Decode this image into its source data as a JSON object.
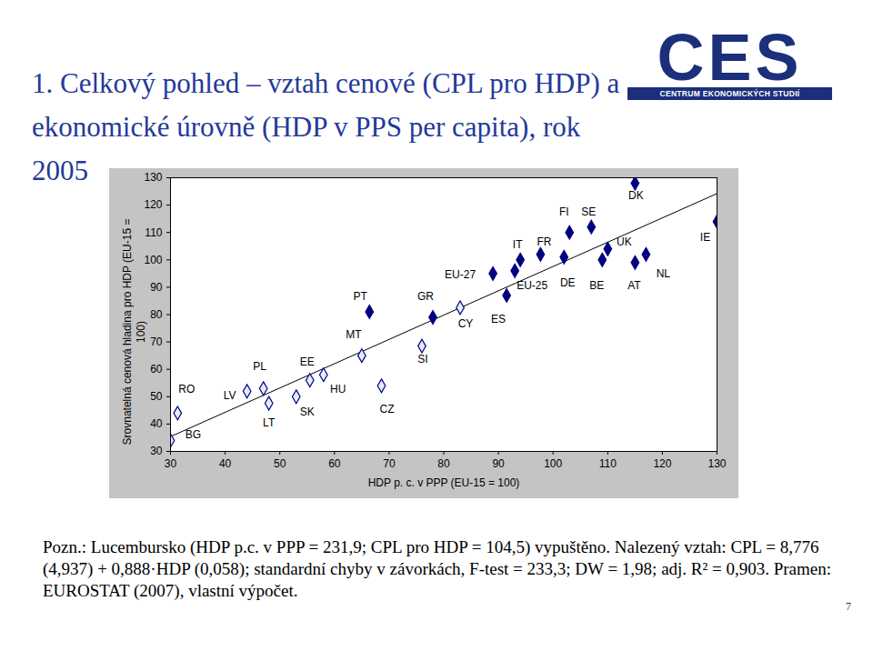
{
  "chart_data": {
    "type": "scatter",
    "title": "1. Celkový pohled – vztah cenové (CPL pro HDP) a ekonomické úrovně (HDP v PPS per capita), rok 2005",
    "x_label": "HDP p. c. v PPP (EU-15 = 100)",
    "y_label": "Srovnatelná cenová hladina pro HDP (EU-15 = 100)",
    "points": [
      {
        "label": "RO",
        "x": 31.3,
        "y": 44
      },
      {
        "label": "BG",
        "x": 30,
        "y": 34
      },
      {
        "label": "LV",
        "x": 44,
        "y": 52
      },
      {
        "label": "PL",
        "x": 47,
        "y": 53
      },
      {
        "label": "LT",
        "x": 48,
        "y": 47.6
      },
      {
        "label": "EE",
        "x": 55.5,
        "y": 56
      },
      {
        "label": "SK",
        "x": 53,
        "y": 50
      },
      {
        "label": "HU",
        "x": 58,
        "y": 58
      },
      {
        "label": "MT",
        "x": 65,
        "y": 65
      },
      {
        "label": "PT",
        "x": 66.4,
        "y": 81
      },
      {
        "label": "CZ",
        "x": 68.6,
        "y": 54
      },
      {
        "label": "SI",
        "x": 76,
        "y": 68.5
      },
      {
        "label": "GR",
        "x": 78,
        "y": 79
      },
      {
        "label": "CY",
        "x": 83,
        "y": 82.5
      },
      {
        "label": "EU-27",
        "x": 89,
        "y": 95
      },
      {
        "label": "ES",
        "x": 91.5,
        "y": 87
      },
      {
        "label": "EU-25",
        "x": 93,
        "y": 96
      },
      {
        "label": "IT",
        "x": 94,
        "y": 100
      },
      {
        "label": "FR",
        "x": 97.7,
        "y": 102
      },
      {
        "label": "FI",
        "x": 103,
        "y": 110
      },
      {
        "label": "SE",
        "x": 107,
        "y": 112
      },
      {
        "label": "DE",
        "x": 102,
        "y": 101
      },
      {
        "label": "BE",
        "x": 109,
        "y": 100
      },
      {
        "label": "UK",
        "x": 110,
        "y": 104
      },
      {
        "label": "AT",
        "x": 115,
        "y": 99
      },
      {
        "label": "NL",
        "x": 117,
        "y": 102
      },
      {
        "label": "DK",
        "x": 115,
        "y": 128
      },
      {
        "label": "IE",
        "x": 130,
        "y": 114
      }
    ],
    "colors": [
      "#e6ecf8",
      "#e6ecf8",
      "#e6ecf8",
      "#e6ecf8",
      "#e6ecf8",
      "#e6ecf8",
      "#e6ecf8",
      "#e6ecf8",
      "#e6ecf8",
      "#000080",
      "#e6ecf8",
      "#e6ecf8",
      "#000080",
      "#e6ecf8",
      "#000080",
      "#000080",
      "#000080",
      "#000080",
      "#000080",
      "#000080",
      "#000080",
      "#000080",
      "#000080",
      "#000080",
      "#000080",
      "#000080",
      "#000080",
      "#000080"
    ],
    "marker": "diamond",
    "fit": {
      "intercept": 8.776,
      "slope": 0.888
    },
    "xlim": [
      30,
      130
    ],
    "ylim": [
      30,
      130
    ],
    "xticks": [
      30,
      40,
      50,
      60,
      70,
      80,
      90,
      100,
      110,
      120,
      130
    ],
    "yticks": [
      30,
      40,
      50,
      60,
      70,
      80,
      90,
      100,
      110,
      120,
      130
    ],
    "grid": false
  },
  "logo": {
    "name": "CES",
    "subtitle": "CENTRUM EKONOMICKÝCH STUDIÍ"
  },
  "note": "Pozn.: Lucembursko (HDP p.c. v PPP = 231,9; CPL pro HDP = 104,5) vypuštěno. Nalezený vztah: CPL = 8,776 (4,937) + 0,888·HDP (0,058); standardní chyby v závorkách, F-test = 233,3; DW = 1,98; adj. R² = 0,903. Pramen: EUROSTAT (2007), vlastní výpočet.",
  "page": "7"
}
